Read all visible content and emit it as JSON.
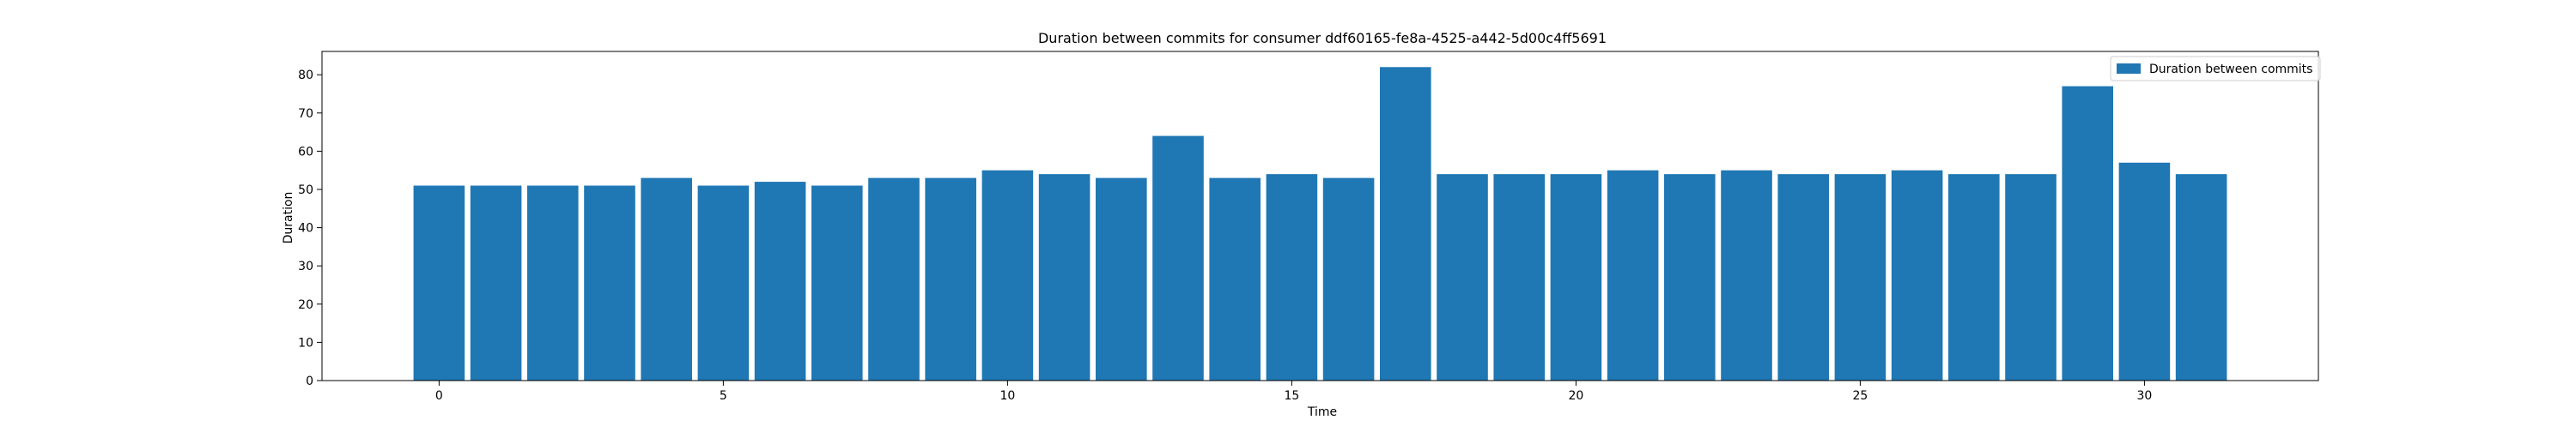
{
  "chart_data": {
    "type": "bar",
    "title": "Duration between commits for consumer ddf60165-fe8a-4525-a442-5d00c4ff5691",
    "xlabel": "Time",
    "ylabel": "Duration",
    "x": [
      0,
      1,
      2,
      3,
      4,
      5,
      6,
      7,
      8,
      9,
      10,
      11,
      12,
      13,
      14,
      15,
      16,
      17,
      18,
      19,
      20,
      21,
      22,
      23,
      24,
      25,
      26,
      27,
      28,
      29,
      30,
      31
    ],
    "values": [
      51,
      51,
      51,
      51,
      53,
      51,
      52,
      51,
      53,
      53,
      55,
      54,
      53,
      64,
      53,
      54,
      53,
      82,
      54,
      54,
      54,
      55,
      54,
      55,
      54,
      54,
      55,
      54,
      54,
      77,
      57,
      54
    ],
    "series": [
      {
        "name": "Duration between commits",
        "color": "#1f77b4"
      }
    ],
    "xlim": [
      -2.06,
      33.06
    ],
    "ylim": [
      0,
      86.1
    ],
    "xticks": [
      0,
      5,
      10,
      15,
      20,
      25,
      30
    ],
    "yticks": [
      0,
      10,
      20,
      30,
      40,
      50,
      60,
      70,
      80
    ],
    "grid": false,
    "legend_position": "upper right"
  }
}
